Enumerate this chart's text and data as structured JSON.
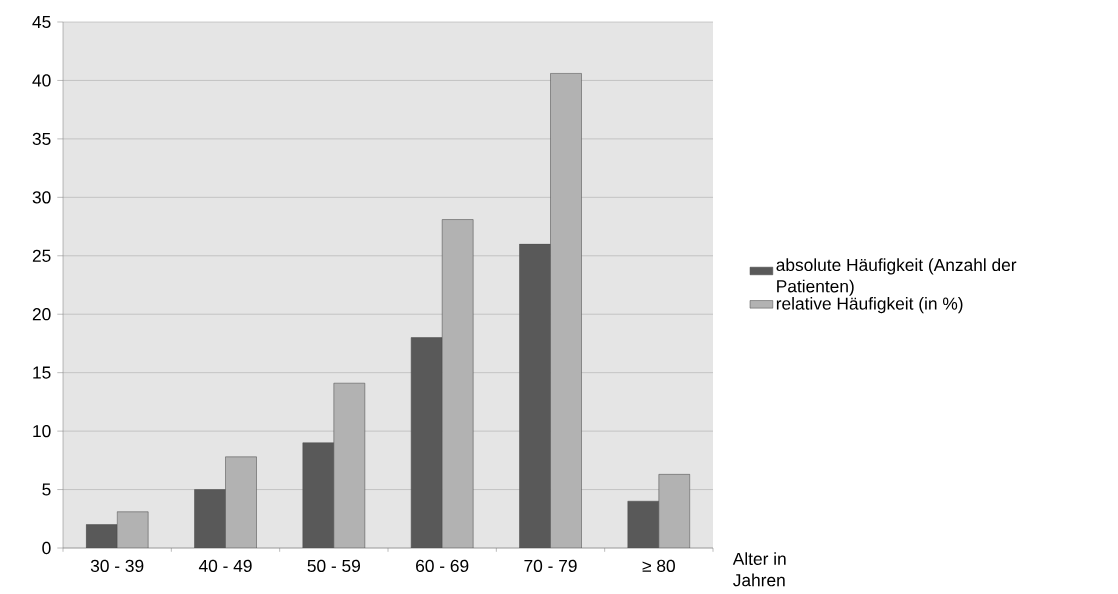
{
  "chart_data": {
    "type": "bar",
    "xlabel": "Alter in Jahren",
    "categories": [
      "30 - 39",
      "40 - 49",
      "50 - 59",
      "60 - 69",
      "70 - 79",
      "≥ 80"
    ],
    "series": [
      {
        "name": "absolute Häufigkeit (Anzahl der Patienten)",
        "color": "#595959",
        "values": [
          2,
          5,
          9,
          18,
          26,
          4
        ]
      },
      {
        "name": "relative Häufigkeit (in %)",
        "color": "#b2b2b2",
        "values": [
          3.1,
          7.8,
          14.1,
          28.1,
          40.6,
          6.3
        ]
      }
    ],
    "ylim": [
      0,
      45
    ],
    "yticks": [
      0,
      5,
      10,
      15,
      20,
      25,
      30,
      35,
      40,
      45
    ],
    "grid": "y",
    "legend": "right"
  }
}
